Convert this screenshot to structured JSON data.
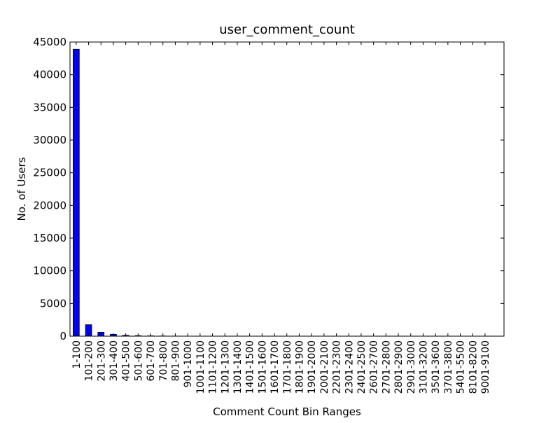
{
  "chart_data": {
    "type": "bar",
    "title": "user_comment_count",
    "xlabel": "Comment Count Bin Ranges",
    "ylabel": "No. of Users",
    "ylim": [
      0,
      45000
    ],
    "yticks": [
      0,
      5000,
      10000,
      15000,
      20000,
      25000,
      30000,
      35000,
      40000,
      45000
    ],
    "grid": false,
    "legend": "none",
    "bar_color": "#0000ff",
    "categories": [
      "1-100",
      "101-200",
      "201-300",
      "301-400",
      "401-500",
      "501-600",
      "601-700",
      "701-800",
      "801-900",
      "901-1000",
      "1001-1100",
      "1101-1200",
      "1201-1300",
      "1301-1400",
      "1401-1500",
      "1501-1600",
      "1601-1700",
      "1701-1800",
      "1801-1900",
      "1901-2000",
      "2001-2100",
      "2201-2300",
      "2301-2400",
      "2401-2500",
      "2601-2700",
      "2701-2800",
      "2801-2900",
      "2901-3000",
      "3101-3200",
      "3501-3600",
      "3701-3800",
      "5401-5500",
      "8101-8200",
      "9001-9100"
    ],
    "values": [
      43900,
      1750,
      600,
      280,
      130,
      80,
      50,
      30,
      18,
      12,
      8,
      6,
      5,
      4,
      3,
      3,
      2,
      2,
      2,
      2,
      1,
      1,
      1,
      1,
      1,
      1,
      1,
      1,
      1,
      1,
      1,
      1,
      1,
      1
    ]
  }
}
